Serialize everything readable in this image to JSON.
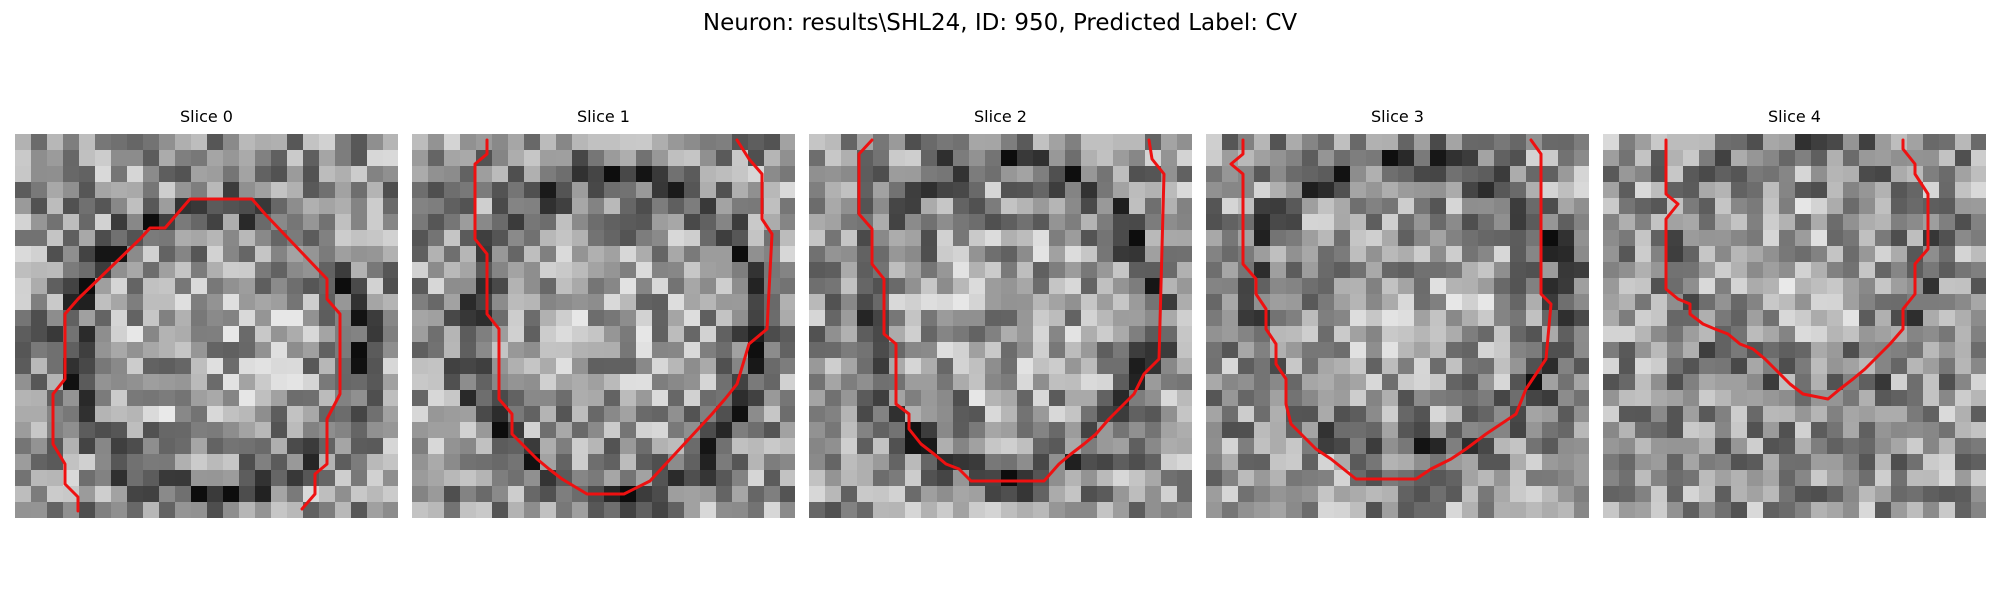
{
  "figure": {
    "title": "Neuron: results\\SHL24, ID: 950, Predicted Label: CV"
  },
  "panels": [
    {
      "title": "Slice 0"
    },
    {
      "title": "Slice 1"
    },
    {
      "title": "Slice 2"
    },
    {
      "title": "Slice 3"
    },
    {
      "title": "Slice 4"
    }
  ],
  "colors": {
    "contour": "#ee1111",
    "colormap": "grayscale"
  }
}
